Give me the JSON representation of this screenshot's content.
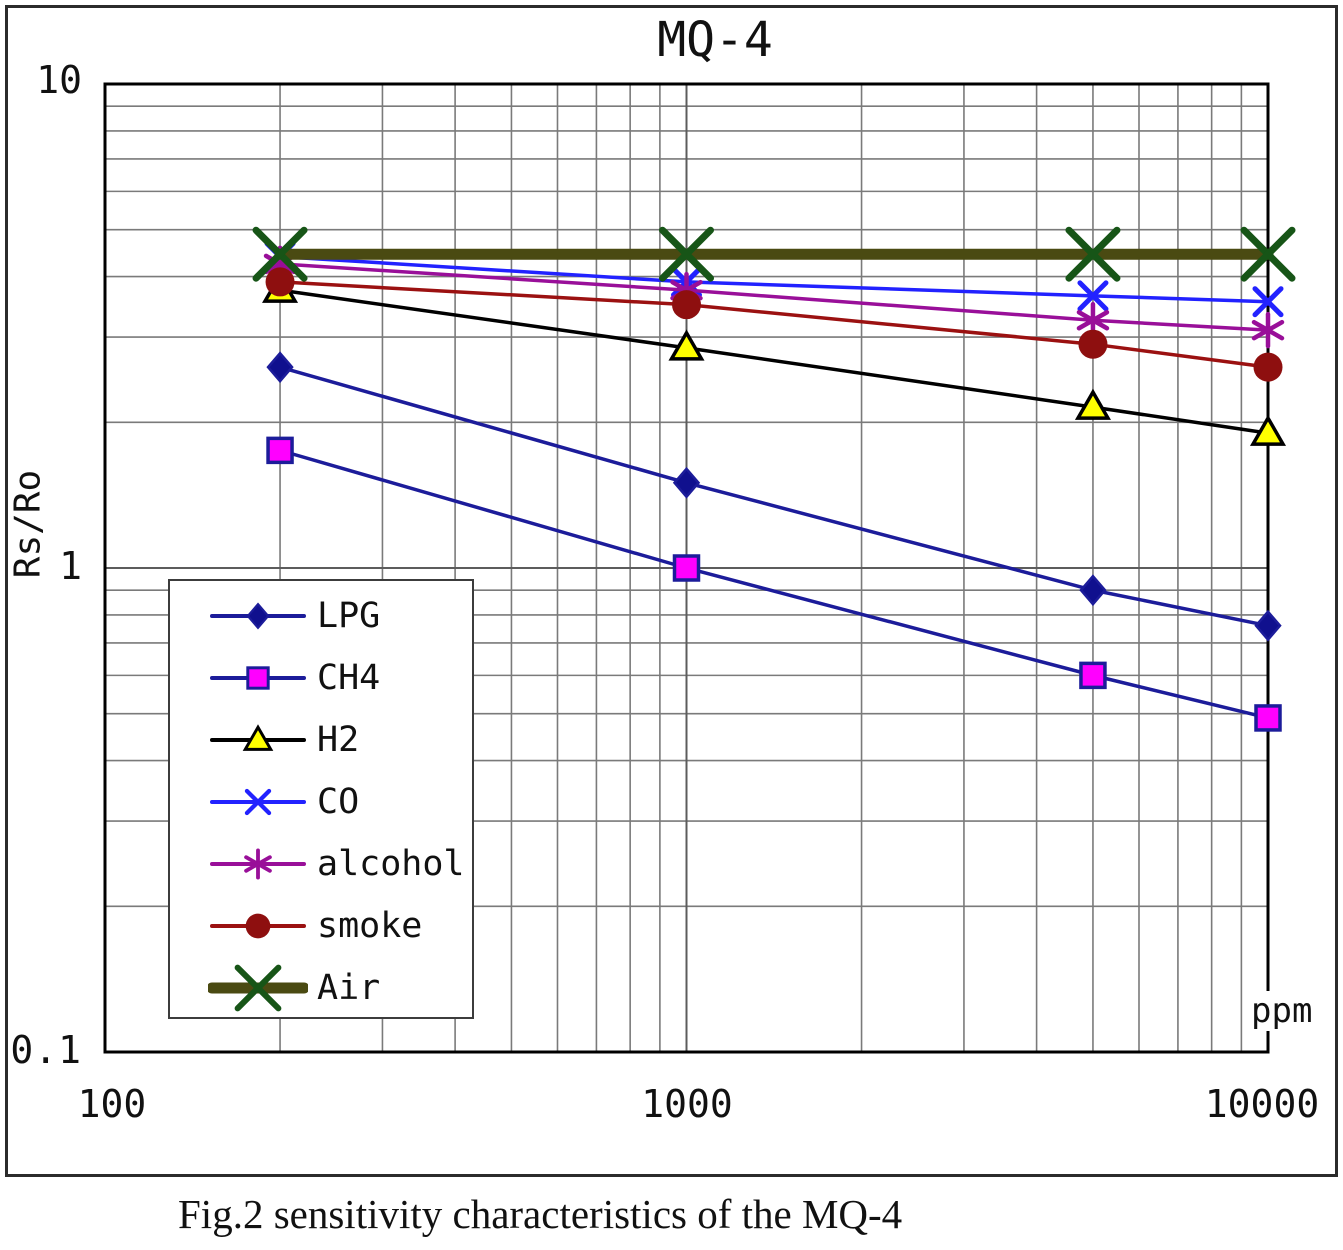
{
  "title": "MQ-4",
  "caption": "Fig.2 sensitivity characteristics of the MQ-4",
  "axes": {
    "y_label": "Rs/Ro",
    "x_unit": "ppm",
    "y_ticks": [
      "10",
      "1",
      "0.1"
    ],
    "x_ticks": [
      "100",
      "1000",
      "10000"
    ]
  },
  "colors": {
    "grid_minor": "#7a7a7a",
    "grid_major": "#5c5c5c",
    "plot_border": "#000000",
    "frame_border": "#2b2b2b"
  },
  "chart_data": {
    "type": "line",
    "title": "MQ-4",
    "xlabel": "ppm",
    "ylabel": "Rs/Ro",
    "x_scale": "log",
    "y_scale": "log",
    "xlim": [
      100,
      10000
    ],
    "ylim": [
      0.1,
      10
    ],
    "grid": "on (log decades with minor lines)",
    "legend_position": "lower-left boxed",
    "x": [
      200,
      1000,
      5000,
      10000
    ],
    "series": [
      {
        "name": "LPG",
        "values": [
          2.6,
          1.5,
          0.9,
          0.76
        ],
        "color": "#1c1c9a",
        "marker": "diamond",
        "marker_fill": "#10108e",
        "line_width": 3.5
      },
      {
        "name": "CH4",
        "values": [
          1.75,
          1.0,
          0.6,
          0.49
        ],
        "color": "#1c1c9a",
        "marker": "square",
        "marker_fill": "#ff00ff",
        "line_width": 3.5
      },
      {
        "name": "H2",
        "values": [
          3.75,
          2.85,
          2.15,
          1.9
        ],
        "color": "#000000",
        "marker": "triangle",
        "marker_fill": "#ffff00",
        "line_width": 3.5
      },
      {
        "name": "CO",
        "values": [
          4.4,
          3.9,
          3.65,
          3.55
        ],
        "color": "#2222ff",
        "marker": "x",
        "marker_fill": "#2222ff",
        "line_width": 3.5
      },
      {
        "name": "alcohol",
        "values": [
          4.25,
          3.75,
          3.25,
          3.1
        ],
        "color": "#990f99",
        "marker": "asterisk",
        "marker_fill": "#990f99",
        "line_width": 3.5
      },
      {
        "name": "smoke",
        "values": [
          3.9,
          3.5,
          2.9,
          2.6
        ],
        "color": "#9b1111",
        "marker": "circle",
        "marker_fill": "#8e0f0f",
        "line_width": 3.5
      },
      {
        "name": "Air",
        "values": [
          4.45,
          4.45,
          4.45,
          4.45
        ],
        "color": "#4a4a12",
        "marker": "X",
        "marker_fill": "#175517",
        "line_width": 11
      }
    ]
  }
}
